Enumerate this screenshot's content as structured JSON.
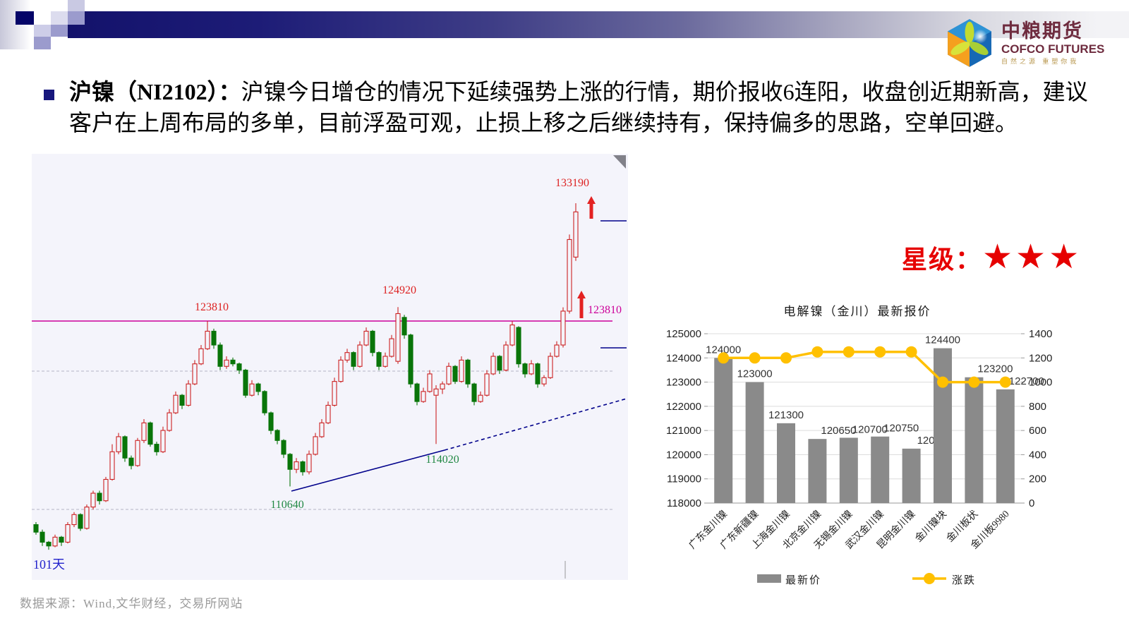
{
  "header": {
    "logo": {
      "cn": "中粮期货",
      "en": "COFCO FUTURES",
      "tagline": "自然之源 重塑你我",
      "brand_color": "#6e2b3e"
    }
  },
  "bullet": {
    "bold": "沪镍（NI2102）：",
    "text": "沪镍今日增仓的情况下延续强势上涨的行情，期价报收6连阳，收盘创近期新高，建议客户在上周布局的多单，目前浮盈可观，止损上移之后继续持有，保持偏多的思路，空单回避。"
  },
  "star_rating": {
    "label": "星级：",
    "stars": "★★★",
    "color": "#e60000"
  },
  "footer": {
    "text": "数据来源：Wind,文华财经，交易所网站"
  },
  "chart_data": [
    {
      "type": "candlestick",
      "description": "沪镍 NI2102 日K线",
      "up_color": "#cc2222",
      "down_color": "#097509",
      "background": "#f4f4fb",
      "resistance_line": {
        "price": 123810,
        "color": "#cc0099"
      },
      "trendline_color": "#00008b",
      "annotations": [
        {
          "text": "133190",
          "color": "#dd2222",
          "candle_index": 85,
          "position": "above-high"
        },
        {
          "text": "124920",
          "color": "#dd2222",
          "candle_index": 57,
          "position": "above-high"
        },
        {
          "text": "123810",
          "color": "#dd2222",
          "candle_index": 27,
          "position": "above-resistance-line"
        },
        {
          "text": "123810",
          "color": "#cc0099",
          "position": "right-edge-with-arrow"
        },
        {
          "text": "114020",
          "color": "#228844",
          "position": "on-trendline"
        },
        {
          "text": "110640",
          "color": "#228844",
          "candle_index": 40,
          "position": "below-low"
        },
        {
          "text": "101天",
          "color": "#2222cc",
          "position": "bottom-left"
        }
      ],
      "candles": [
        [
          107600,
          107800,
          106800,
          107000
        ],
        [
          107000,
          107200,
          105900,
          106200
        ],
        [
          106200,
          106300,
          105600,
          105900
        ],
        [
          105900,
          106800,
          105800,
          106600
        ],
        [
          106600,
          106700,
          105900,
          106200
        ],
        [
          106200,
          107800,
          106100,
          107600
        ],
        [
          107600,
          108600,
          107400,
          108400
        ],
        [
          108400,
          108500,
          107100,
          107300
        ],
        [
          107300,
          109200,
          107200,
          109000
        ],
        [
          109000,
          110300,
          108800,
          110100
        ],
        [
          110100,
          110300,
          109200,
          109500
        ],
        [
          109500,
          111400,
          109400,
          111200
        ],
        [
          111200,
          114000,
          111100,
          113400
        ],
        [
          113400,
          114900,
          113200,
          114600
        ],
        [
          114600,
          114700,
          112600,
          112900
        ],
        [
          112900,
          113100,
          112000,
          112300
        ],
        [
          112300,
          114500,
          112200,
          114300
        ],
        [
          114300,
          116000,
          114100,
          115700
        ],
        [
          115700,
          115800,
          113800,
          114000
        ],
        [
          114000,
          114200,
          113100,
          113400
        ],
        [
          113400,
          115400,
          113300,
          115100
        ],
        [
          115100,
          116800,
          115000,
          116500
        ],
        [
          116500,
          118200,
          116400,
          117900
        ],
        [
          117900,
          118000,
          116800,
          117100
        ],
        [
          117100,
          119100,
          117000,
          118800
        ],
        [
          118800,
          120700,
          118700,
          120400
        ],
        [
          120400,
          121900,
          120300,
          121600
        ],
        [
          121600,
          123810,
          121500,
          123000
        ],
        [
          123000,
          123200,
          121600,
          121900
        ],
        [
          121900,
          122100,
          119900,
          120200
        ],
        [
          120200,
          121000,
          120000,
          120700
        ],
        [
          120700,
          120900,
          120200,
          120400
        ],
        [
          120400,
          120500,
          119600,
          119900
        ],
        [
          119900,
          120000,
          117700,
          117900
        ],
        [
          117900,
          119100,
          117800,
          118800
        ],
        [
          118800,
          118900,
          117900,
          118200
        ],
        [
          118200,
          118300,
          116300,
          116500
        ],
        [
          116500,
          116600,
          114800,
          115100
        ],
        [
          115100,
          115200,
          114000,
          114300
        ],
        [
          114300,
          114400,
          112900,
          113200
        ],
        [
          113200,
          113300,
          110640,
          112000
        ],
        [
          112000,
          112900,
          111700,
          112600
        ],
        [
          112600,
          112700,
          111500,
          111800
        ],
        [
          111800,
          113500,
          111600,
          113200
        ],
        [
          113200,
          114900,
          113100,
          114600
        ],
        [
          114600,
          116000,
          114500,
          115700
        ],
        [
          115700,
          117400,
          115600,
          117100
        ],
        [
          117100,
          119300,
          117000,
          119000
        ],
        [
          119000,
          121000,
          118900,
          120700
        ],
        [
          120700,
          121600,
          120500,
          121300
        ],
        [
          121300,
          121400,
          119900,
          120200
        ],
        [
          120200,
          122200,
          120100,
          121900
        ],
        [
          121900,
          123300,
          121800,
          123000
        ],
        [
          123000,
          123100,
          121000,
          121300
        ],
        [
          121300,
          121400,
          119900,
          120200
        ],
        [
          120200,
          121300,
          120100,
          121000
        ],
        [
          121000,
          122700,
          120900,
          122400
        ],
        [
          120600,
          124920,
          120400,
          124400
        ],
        [
          124100,
          124300,
          122400,
          122700
        ],
        [
          122700,
          122800,
          118500,
          118800
        ],
        [
          118800,
          118900,
          117100,
          117400
        ],
        [
          117400,
          118500,
          117300,
          118200
        ],
        [
          118200,
          119900,
          118100,
          119600
        ],
        [
          117900,
          118700,
          114020,
          118400
        ],
        [
          118400,
          119000,
          118000,
          118800
        ],
        [
          118800,
          120500,
          118700,
          120200
        ],
        [
          120200,
          120300,
          118800,
          119000
        ],
        [
          119000,
          121000,
          118900,
          120700
        ],
        [
          120700,
          120800,
          118500,
          118800
        ],
        [
          118800,
          118900,
          117100,
          117400
        ],
        [
          117400,
          118200,
          117300,
          117900
        ],
        [
          117900,
          119900,
          117800,
          119600
        ],
        [
          119600,
          121300,
          119500,
          121000
        ],
        [
          121000,
          121100,
          119600,
          119900
        ],
        [
          119900,
          122200,
          119800,
          121900
        ],
        [
          121900,
          123800,
          121800,
          123500
        ],
        [
          123300,
          123400,
          120100,
          120400
        ],
        [
          120400,
          120500,
          119300,
          119600
        ],
        [
          119600,
          120700,
          119500,
          120400
        ],
        [
          120400,
          120500,
          118500,
          118800
        ],
        [
          118800,
          119500,
          118600,
          119300
        ],
        [
          119300,
          121300,
          119200,
          121000
        ],
        [
          121000,
          122200,
          120900,
          121900
        ],
        [
          121900,
          124900,
          121700,
          124600
        ],
        [
          124600,
          130700,
          124400,
          130300
        ],
        [
          128900,
          133190,
          128600,
          132500
        ]
      ]
    },
    {
      "type": "bar-line-combo",
      "title": "电解镍（金川）最新报价",
      "categories": [
        "广东金川镍",
        "广东新疆镍",
        "上海金川镍",
        "北京金川镍",
        "无锡金川镍",
        "武汉金川镍",
        "昆明金川镍",
        "金川镍块",
        "金川板状",
        "金川板9980"
      ],
      "series": [
        {
          "name": "最新价",
          "type": "bar",
          "axis": "left",
          "color": "#8a8a8a",
          "values": [
            124000,
            123000,
            121300,
            120650,
            120700,
            120750,
            120250,
            124400,
            123200,
            122700
          ]
        },
        {
          "name": "涨跌",
          "type": "line",
          "axis": "right",
          "color": "#FFC000",
          "values": [
            1200,
            1200,
            1200,
            1250,
            1250,
            1250,
            1250,
            1000,
            1000,
            1000
          ]
        }
      ],
      "left_axis": {
        "min": 118000,
        "max": 125000,
        "step": 1000
      },
      "right_axis": {
        "min": 0,
        "max": 1400,
        "step": 200
      },
      "grid": true,
      "legend_position": "bottom"
    }
  ]
}
